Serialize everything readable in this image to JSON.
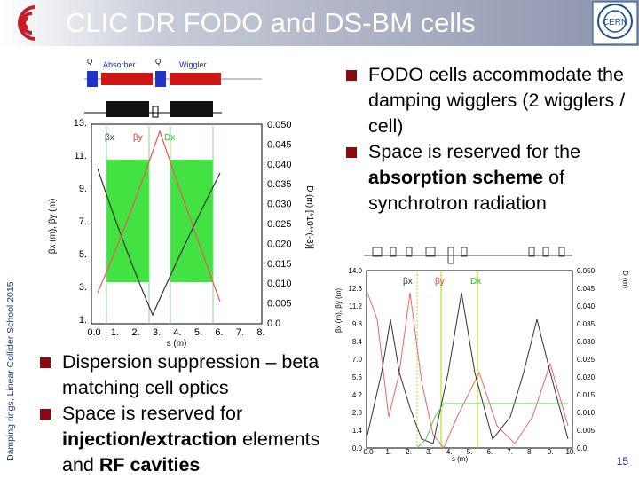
{
  "header": {
    "title": "CLIC DR FODO and DS-BM cells"
  },
  "side_label": "Damping rings, Linear Collider School 2015",
  "page_number": "15",
  "top_bullets": [
    [
      "FODO cells accommodate the damping wigglers (2 wigglers / cell)"
    ],
    [
      "Space is reserved for the ",
      "absorption scheme",
      " of synchrotron radiation"
    ]
  ],
  "bottom_bullets": [
    [
      "Dispersion suppression – beta matching cell optics"
    ],
    [
      "Space is reserved for ",
      "injection/extraction",
      " elements and ",
      "RF cavities"
    ]
  ],
  "fodo_plot": {
    "element_labels": [
      "Q",
      "Absorber",
      "Q",
      "Wiggler"
    ],
    "legend": [
      "βx",
      "βy",
      "Dx"
    ],
    "y_label": "βx (m), βy (m)",
    "y2_label": "D (m)  [*10**(-3)]",
    "x_label": "s (m)",
    "yticks": [
      "1.",
      "3.",
      "5.",
      "7.",
      "9.",
      "11.",
      "13."
    ],
    "y2ticks": [
      "0.0",
      "0.005",
      "0.010",
      "0.015",
      "0.020",
      "0.025",
      "0.030",
      "0.035",
      "0.040",
      "0.045",
      "0.050"
    ],
    "xticks": [
      "0.0",
      "1.",
      "2.",
      "3.",
      "4.",
      "5.",
      "6.",
      "7.",
      "8."
    ]
  },
  "dsbm_plot": {
    "legend": [
      "βx",
      "βy",
      "Dx"
    ],
    "y_label": "βx (m), βy (m)",
    "y2_label": "D (m)",
    "x_label": "s (m)",
    "yticks": [
      "0.0",
      "1.4",
      "2.8",
      "4.2",
      "5.6",
      "7.0",
      "8.4",
      "9.8",
      "11.2",
      "12.6",
      "14.0"
    ],
    "y2ticks": [
      "0.0",
      "0.005",
      "0.010",
      "0.015",
      "0.020",
      "0.025",
      "0.030",
      "0.035",
      "0.040",
      "0.045",
      "0.050"
    ],
    "xticks": [
      "0.0",
      "1.",
      "2.",
      "3.",
      "4.",
      "5.",
      "6.",
      "7.",
      "8.",
      "9.",
      "10."
    ]
  }
}
